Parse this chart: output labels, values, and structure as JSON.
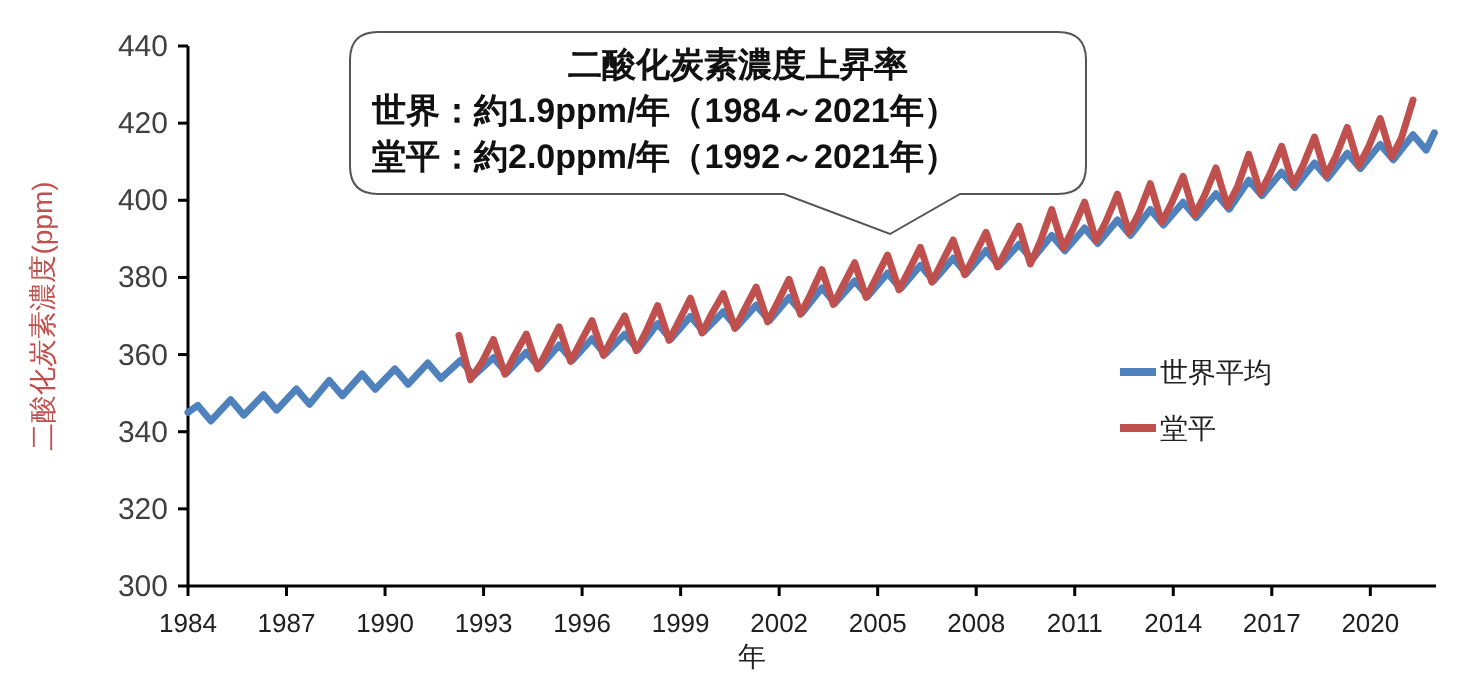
{
  "chart_data": {
    "type": "line",
    "xlabel": "年",
    "ylabel": "二酸化炭素濃度(ppm)",
    "annotations": [
      "二酸化炭素濃度上昇率",
      "世界：約1.9ppm/年（1984～2021年）",
      "堂平：約2.0ppm/年（1992～2021年）"
    ],
    "xlim": [
      1984,
      2022
    ],
    "xticks": [
      1984,
      1987,
      1990,
      1993,
      1996,
      1999,
      2002,
      2005,
      2008,
      2011,
      2014,
      2017,
      2020
    ],
    "ylim": [
      300,
      440
    ],
    "yticks": [
      300,
      320,
      340,
      360,
      380,
      400,
      420,
      440
    ],
    "grid": false,
    "legend": "right",
    "marker": "none",
    "line_style": "solid",
    "series": [
      {
        "name": "世界平均",
        "color": "#4f81bd",
        "x": [
          1984.0,
          1984.3,
          1984.7,
          1985.3,
          1985.7,
          1986.3,
          1986.7,
          1987.3,
          1987.7,
          1988.3,
          1988.7,
          1989.3,
          1989.7,
          1990.3,
          1990.7,
          1991.3,
          1991.7,
          1992.3,
          1992.7,
          1993.3,
          1993.7,
          1994.3,
          1994.7,
          1995.3,
          1995.7,
          1996.3,
          1996.7,
          1997.3,
          1997.7,
          1998.3,
          1998.7,
          1999.3,
          1999.7,
          2000.3,
          2000.7,
          2001.3,
          2001.7,
          2002.3,
          2002.7,
          2003.3,
          2003.7,
          2004.3,
          2004.7,
          2005.3,
          2005.7,
          2006.3,
          2006.7,
          2007.3,
          2007.7,
          2008.3,
          2008.7,
          2009.3,
          2009.7,
          2010.3,
          2010.7,
          2011.3,
          2011.7,
          2012.3,
          2012.7,
          2013.3,
          2013.7,
          2014.3,
          2014.7,
          2015.3,
          2015.7,
          2016.3,
          2016.7,
          2017.3,
          2017.7,
          2018.3,
          2018.7,
          2019.3,
          2019.7,
          2020.3,
          2020.7,
          2021.3,
          2021.7,
          2021.95
        ],
        "values": [
          345.0,
          346.8,
          342.8,
          348.3,
          344.3,
          349.6,
          345.6,
          351.1,
          347.1,
          353.3,
          349.3,
          355.0,
          351.0,
          356.3,
          352.3,
          357.8,
          353.8,
          358.5,
          354.5,
          359.2,
          355.2,
          360.6,
          356.6,
          362.5,
          358.5,
          364.1,
          360.1,
          365.3,
          361.3,
          368.0,
          364.0,
          369.9,
          365.9,
          371.1,
          367.1,
          372.8,
          368.8,
          374.8,
          370.8,
          377.3,
          373.3,
          379.1,
          375.1,
          381.1,
          377.1,
          383.1,
          379.1,
          385.0,
          381.0,
          387.0,
          383.0,
          388.6,
          384.6,
          390.9,
          386.9,
          392.8,
          388.8,
          394.9,
          390.9,
          397.6,
          393.6,
          399.5,
          395.5,
          401.7,
          397.7,
          405.2,
          401.2,
          407.3,
          403.3,
          409.7,
          405.7,
          412.2,
          408.2,
          414.5,
          410.5,
          417.0,
          413.0,
          417.5
        ]
      },
      {
        "name": "堂平",
        "color": "#c0504d",
        "x": [
          1992.25,
          1992.6,
          1992.95,
          1993.3,
          1993.65,
          1993.95,
          1994.3,
          1994.65,
          1994.95,
          1995.3,
          1995.65,
          1995.95,
          1996.3,
          1996.65,
          1996.95,
          1997.3,
          1997.65,
          1997.95,
          1998.3,
          1998.65,
          1998.95,
          1999.3,
          1999.65,
          1999.95,
          2000.3,
          2000.65,
          2000.95,
          2001.3,
          2001.65,
          2001.95,
          2002.3,
          2002.65,
          2002.95,
          2003.3,
          2003.65,
          2003.95,
          2004.3,
          2004.65,
          2004.95,
          2005.3,
          2005.65,
          2005.95,
          2006.3,
          2006.65,
          2006.95,
          2007.3,
          2007.65,
          2007.95,
          2008.3,
          2008.65,
          2008.95,
          2009.3,
          2009.65,
          2009.95,
          2010.3,
          2010.65,
          2010.95,
          2011.3,
          2011.65,
          2011.95,
          2012.3,
          2012.65,
          2012.95,
          2013.3,
          2013.65,
          2013.95,
          2014.3,
          2014.65,
          2014.95,
          2015.3,
          2015.65,
          2015.95,
          2016.3,
          2016.65,
          2016.95,
          2017.3,
          2017.65,
          2017.95,
          2018.3,
          2018.65,
          2018.95,
          2019.3,
          2019.65,
          2019.95,
          2020.3,
          2020.65,
          2020.95,
          2021.3
        ],
        "values": [
          365.0,
          353.5,
          358.0,
          363.9,
          354.9,
          359.9,
          365.3,
          356.3,
          361.3,
          367.2,
          358.2,
          363.2,
          368.8,
          359.8,
          364.8,
          370.0,
          361.0,
          366.0,
          372.7,
          363.7,
          368.7,
          374.6,
          365.6,
          370.6,
          375.8,
          366.8,
          371.8,
          377.5,
          368.5,
          373.5,
          379.5,
          370.5,
          375.5,
          382.0,
          373.0,
          378.0,
          383.8,
          374.8,
          379.8,
          385.8,
          376.8,
          381.8,
          387.8,
          378.8,
          383.8,
          389.7,
          380.7,
          385.7,
          391.7,
          382.7,
          387.7,
          393.3,
          383.5,
          389.3,
          397.6,
          387.6,
          392.6,
          399.5,
          389.5,
          394.5,
          401.6,
          391.6,
          396.6,
          404.3,
          394.3,
          399.3,
          406.2,
          396.2,
          401.2,
          408.4,
          398.4,
          403.4,
          411.9,
          401.9,
          406.9,
          414.0,
          404.0,
          409.0,
          416.4,
          406.4,
          411.4,
          418.9,
          408.9,
          413.9,
          421.2,
          411.2,
          416.2,
          426.0
        ]
      }
    ]
  }
}
